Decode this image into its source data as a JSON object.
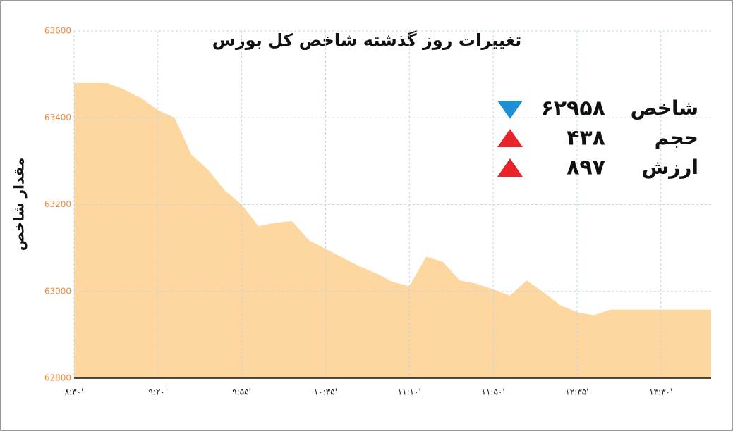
{
  "chart_data": {
    "type": "area",
    "title": "تغییرات روز گذشته شاخص کل بورس",
    "y_label": "مقدار شاخص",
    "categories": [
      "۸:۳۰'",
      null,
      null,
      null,
      null,
      "۹:۲۰'",
      null,
      null,
      null,
      null,
      "۹:۵۵'",
      null,
      null,
      null,
      null,
      "۱۰:۳۵'",
      null,
      null,
      null,
      null,
      "۱۱:۱۰'",
      null,
      null,
      null,
      null,
      "۱۱:۵۰'",
      null,
      null,
      null,
      null,
      "۱۲:۳۵'",
      null,
      null,
      null,
      null,
      "۱۳:۳۰'",
      null,
      null,
      null
    ],
    "values": [
      63480,
      63480,
      63480,
      63465,
      63445,
      63418,
      63400,
      63315,
      63280,
      63232,
      63200,
      63150,
      63158,
      63162,
      63118,
      63098,
      63078,
      63058,
      63042,
      63022,
      63012,
      63080,
      63068,
      63025,
      63018,
      63005,
      62990,
      63025,
      62998,
      62968,
      62952,
      62945,
      62958,
      62958,
      62958,
      62958,
      62958,
      62958,
      62958
    ],
    "color": "#fdd6a0",
    "ylim": [
      62800,
      63600
    ],
    "yticks": [
      62800,
      63000,
      63200,
      63400,
      63600
    ],
    "grid": true,
    "indicators": [
      {
        "name": "شاخص",
        "value": "۶۲۹۵۸",
        "direction": "down",
        "color": "#1d8fd3"
      },
      {
        "name": "حجم",
        "value": "۴۳۸",
        "direction": "up",
        "color": "#e8232a"
      },
      {
        "name": "ارزش",
        "value": "۸۹۷",
        "direction": "up",
        "color": "#e8232a"
      }
    ]
  }
}
